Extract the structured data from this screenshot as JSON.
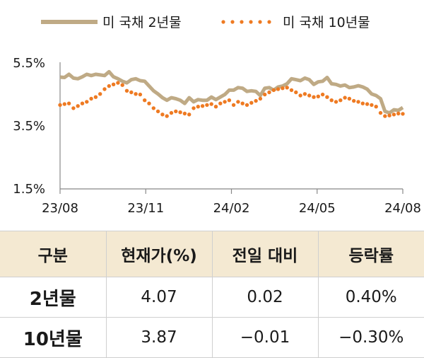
{
  "chart_data": {
    "type": "line",
    "x_ticks": [
      "23/08",
      "23/11",
      "24/02",
      "24/05",
      "24/08"
    ],
    "y_ticks": [
      "5.5%",
      "3.5%",
      "1.5%"
    ],
    "ylim": [
      1.5,
      5.5
    ],
    "series": [
      {
        "name": "미 국채 2년물",
        "color": "#bfaa85",
        "style": "solid",
        "values": [
          5.03,
          5.02,
          5.12,
          5.0,
          4.98,
          5.04,
          5.12,
          5.08,
          5.12,
          5.1,
          5.08,
          5.2,
          5.04,
          4.98,
          4.9,
          4.85,
          4.95,
          4.98,
          4.92,
          4.9,
          4.75,
          4.6,
          4.5,
          4.38,
          4.3,
          4.38,
          4.35,
          4.3,
          4.2,
          4.38,
          4.25,
          4.32,
          4.3,
          4.3,
          4.4,
          4.32,
          4.4,
          4.48,
          4.62,
          4.62,
          4.7,
          4.68,
          4.58,
          4.6,
          4.58,
          4.45,
          4.68,
          4.7,
          4.62,
          4.72,
          4.75,
          4.82,
          4.98,
          4.95,
          4.92,
          5.0,
          4.95,
          4.8,
          4.88,
          4.9,
          5.02,
          4.82,
          4.8,
          4.75,
          4.78,
          4.7,
          4.72,
          4.76,
          4.72,
          4.65,
          4.5,
          4.45,
          4.35,
          3.95,
          3.9,
          4.0,
          3.98,
          4.07
        ]
      },
      {
        "name": "미 국채 10년물",
        "color": "#ee7a22",
        "style": "dotted",
        "values": [
          4.15,
          4.18,
          4.2,
          4.05,
          4.12,
          4.2,
          4.25,
          4.35,
          4.4,
          4.5,
          4.65,
          4.75,
          4.8,
          4.85,
          4.78,
          4.6,
          4.55,
          4.5,
          4.48,
          4.3,
          4.2,
          4.05,
          3.95,
          3.85,
          3.8,
          3.9,
          3.95,
          3.92,
          3.88,
          3.85,
          4.05,
          4.1,
          4.12,
          4.15,
          4.18,
          4.1,
          4.2,
          4.25,
          4.3,
          4.15,
          4.25,
          4.2,
          4.15,
          4.22,
          4.28,
          4.35,
          4.48,
          4.55,
          4.62,
          4.65,
          4.68,
          4.7,
          4.62,
          4.55,
          4.45,
          4.5,
          4.45,
          4.4,
          4.42,
          4.48,
          4.4,
          4.3,
          4.25,
          4.3,
          4.38,
          4.35,
          4.28,
          4.25,
          4.2,
          4.18,
          4.15,
          4.1,
          3.9,
          3.8,
          3.82,
          3.85,
          3.88,
          3.87
        ]
      }
    ]
  },
  "table": {
    "headers": [
      "구분",
      "현재가(%)",
      "전일 대비",
      "등락률"
    ],
    "rows": [
      [
        "2년물",
        "4.07",
        "0.02",
        "0.40%"
      ],
      [
        "10년물",
        "3.87",
        "−0.01",
        "−0.30%"
      ]
    ]
  }
}
